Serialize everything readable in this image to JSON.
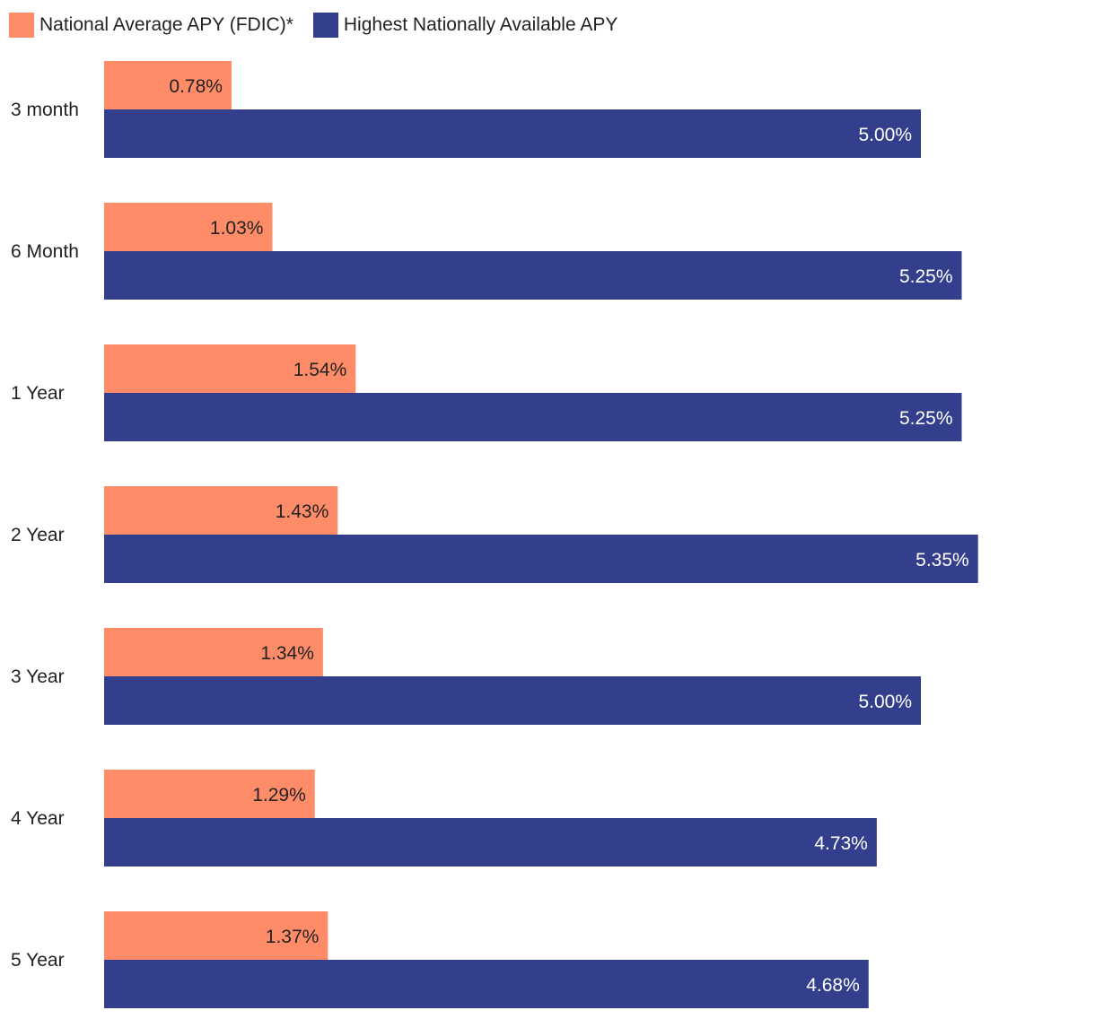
{
  "chart_data": {
    "type": "bar",
    "orientation": "horizontal",
    "title": "",
    "xlabel": "",
    "ylabel": "",
    "categories": [
      "3 month",
      "6 Month",
      "1 Year",
      "2 Year",
      "3 Year",
      "4 Year",
      "5 Year"
    ],
    "series": [
      {
        "name": "National Average APY (FDIC)*",
        "color": "#FF8C69",
        "label_color": "#222222",
        "values": [
          0.78,
          1.03,
          1.54,
          1.43,
          1.34,
          1.29,
          1.37
        ],
        "labels": [
          "0.78%",
          "1.03%",
          "1.54%",
          "1.43%",
          "1.34%",
          "1.29%",
          "1.37%"
        ]
      },
      {
        "name": "Highest Nationally Available APY",
        "color": "#333F8C",
        "label_color": "#ffffff",
        "values": [
          5.0,
          5.25,
          5.25,
          5.35,
          5.0,
          4.73,
          4.68
        ],
        "labels": [
          "5.00%",
          "5.25%",
          "5.25%",
          "5.35%",
          "5.00%",
          "4.73%",
          "4.68%"
        ]
      }
    ],
    "xlim": [
      0,
      5.5
    ],
    "grid": false,
    "legend": "top-left"
  }
}
